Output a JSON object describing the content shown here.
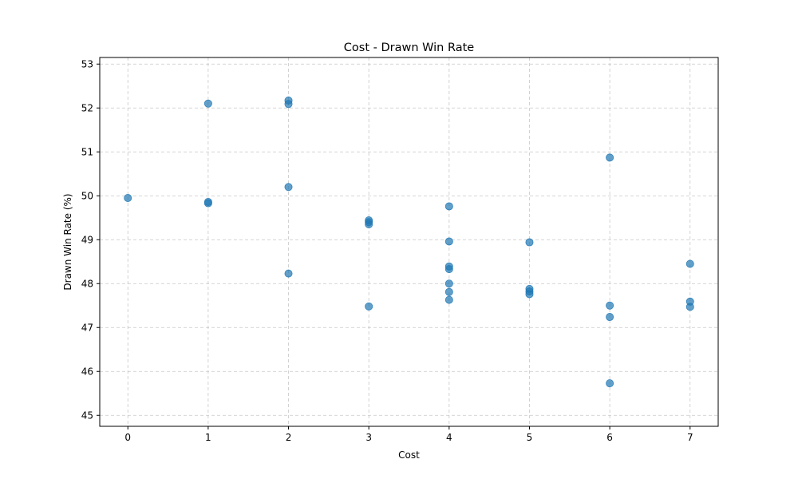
{
  "chart_data": {
    "type": "scatter",
    "title": "Cost - Drawn Win Rate",
    "xlabel": "Cost",
    "ylabel": "Drawn Win Rate (%)",
    "xlim": [
      -0.35,
      7.35
    ],
    "ylim": [
      44.75,
      53.15
    ],
    "xticks": [
      0,
      1,
      2,
      3,
      4,
      5,
      6,
      7
    ],
    "yticks": [
      45,
      46,
      47,
      48,
      49,
      50,
      51,
      52,
      53
    ],
    "grid": true,
    "point_color": "#1f77b4",
    "points": [
      {
        "x": 0,
        "y": 49.95
      },
      {
        "x": 1,
        "y": 52.1
      },
      {
        "x": 1,
        "y": 49.86
      },
      {
        "x": 1,
        "y": 49.83
      },
      {
        "x": 2,
        "y": 52.17
      },
      {
        "x": 2,
        "y": 52.09
      },
      {
        "x": 2,
        "y": 50.2
      },
      {
        "x": 2,
        "y": 48.23
      },
      {
        "x": 3,
        "y": 49.44
      },
      {
        "x": 3,
        "y": 49.4
      },
      {
        "x": 3,
        "y": 49.35
      },
      {
        "x": 3,
        "y": 47.48
      },
      {
        "x": 4,
        "y": 49.76
      },
      {
        "x": 4,
        "y": 48.96
      },
      {
        "x": 4,
        "y": 48.39
      },
      {
        "x": 4,
        "y": 48.33
      },
      {
        "x": 4,
        "y": 48.0
      },
      {
        "x": 4,
        "y": 47.81
      },
      {
        "x": 4,
        "y": 47.63
      },
      {
        "x": 5,
        "y": 48.94
      },
      {
        "x": 5,
        "y": 47.88
      },
      {
        "x": 5,
        "y": 47.82
      },
      {
        "x": 5,
        "y": 47.76
      },
      {
        "x": 6,
        "y": 50.87
      },
      {
        "x": 6,
        "y": 47.5
      },
      {
        "x": 6,
        "y": 47.24
      },
      {
        "x": 6,
        "y": 45.73
      },
      {
        "x": 7,
        "y": 48.45
      },
      {
        "x": 7,
        "y": 47.59
      },
      {
        "x": 7,
        "y": 47.47
      }
    ]
  }
}
